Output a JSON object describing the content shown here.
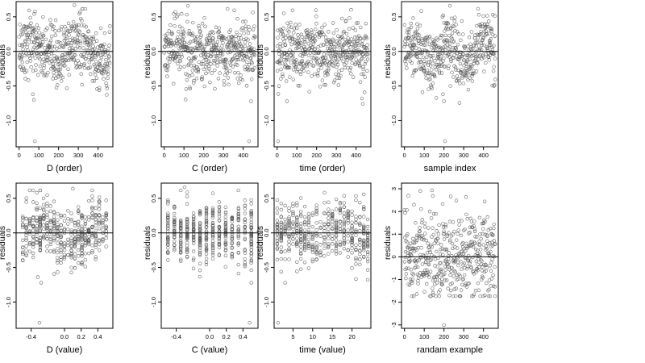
{
  "chart_data": [
    {
      "type": "scatter",
      "xlabel": "D (order)",
      "ylabel": "residuals",
      "xlim": [
        -15,
        475
      ],
      "ylim": [
        -1.38,
        0.72
      ],
      "xticks": [
        0,
        100,
        200,
        300,
        400
      ],
      "xtick_labels": [
        "0",
        "100",
        "200",
        "300",
        "400"
      ],
      "yticks": [
        -1.0,
        -0.5,
        0.0,
        0.5
      ],
      "ytick_labels": [
        "-1.0",
        "-0.5",
        "0.0",
        "0.5"
      ],
      "reference_line_y": 0,
      "point_pattern": {
        "n": 460,
        "x_range": [
          0,
          460
        ],
        "distribution": "index",
        "y_sd": 0.22,
        "wave_amplitude": 0.14,
        "wave_period": 240
      },
      "outliers": [
        {
          "x": 70,
          "y": -0.62
        },
        {
          "x": 75,
          "y": -0.7
        },
        {
          "x": 80,
          "y": -1.3
        },
        {
          "x": 280,
          "y": 0.67
        }
      ]
    },
    {
      "type": "scatter",
      "xlabel": "C (order)",
      "ylabel": "residuals",
      "xlim": [
        -15,
        475
      ],
      "ylim": [
        -1.38,
        0.72
      ],
      "xticks": [
        0,
        100,
        200,
        300,
        400
      ],
      "xtick_labels": [
        "0",
        "100",
        "200",
        "300",
        "400"
      ],
      "yticks": [
        -1.0,
        -0.5,
        0.0,
        0.5
      ],
      "ytick_labels": [
        "-1.0",
        "-0.5",
        "0.0",
        "0.5"
      ],
      "reference_line_y": 0,
      "point_pattern": {
        "n": 460,
        "x_range": [
          0,
          460
        ],
        "distribution": "index",
        "y_sd": 0.22,
        "wave_amplitude": 0.04,
        "wave_period": 200
      },
      "outliers": [
        {
          "x": 120,
          "y": 0.66
        },
        {
          "x": 440,
          "y": -0.72
        },
        {
          "x": 430,
          "y": -1.3
        }
      ]
    },
    {
      "type": "scatter",
      "xlabel": "time (order)",
      "ylabel": "residuals",
      "xlim": [
        -15,
        475
      ],
      "ylim": [
        -1.38,
        0.72
      ],
      "xticks": [
        0,
        100,
        200,
        300,
        400
      ],
      "xtick_labels": [
        "0",
        "100",
        "200",
        "300",
        "400"
      ],
      "yticks": [
        -1.0,
        -0.5,
        0.0,
        0.5
      ],
      "ytick_labels": [
        "-1.0",
        "-0.5",
        "0.0",
        "0.5"
      ],
      "reference_line_y": 0,
      "point_pattern": {
        "n": 460,
        "x_range": [
          0,
          460
        ],
        "distribution": "index",
        "y_sd": 0.22,
        "wave_amplitude": 0.05,
        "wave_period": 160
      },
      "outliers": [
        {
          "x": 50,
          "y": -0.72
        },
        {
          "x": 5,
          "y": -1.3
        },
        {
          "x": 430,
          "y": -0.68
        }
      ]
    },
    {
      "type": "scatter",
      "xlabel": "sample index",
      "ylabel": "residuals",
      "xlim": [
        -15,
        475
      ],
      "ylim": [
        -1.38,
        0.72
      ],
      "xticks": [
        0,
        100,
        200,
        300,
        400
      ],
      "xtick_labels": [
        "0",
        "100",
        "200",
        "300",
        "400"
      ],
      "yticks": [
        -1.0,
        -0.5,
        0.0,
        0.5
      ],
      "ytick_labels": [
        "-1.0",
        "-0.5",
        "0.0",
        "0.5"
      ],
      "reference_line_y": 0,
      "point_pattern": {
        "n": 460,
        "x_range": [
          0,
          460
        ],
        "distribution": "index",
        "y_sd": 0.22,
        "wave_amplitude": 0.15,
        "wave_period": 180
      },
      "outliers": [
        {
          "x": 195,
          "y": -0.62
        },
        {
          "x": 200,
          "y": -0.72
        },
        {
          "x": 205,
          "y": -1.3
        },
        {
          "x": 230,
          "y": 0.66
        }
      ]
    },
    {
      "type": "scatter",
      "xlabel": "D (value)",
      "ylabel": "residuals",
      "xlim": [
        -0.58,
        0.58
      ],
      "ylim": [
        -1.38,
        0.72
      ],
      "xticks": [
        -0.4,
        0.0,
        0.2,
        0.4
      ],
      "xtick_labels": [
        "-0.4",
        "0.0",
        "0.2",
        "0.4"
      ],
      "yticks": [
        -1.0,
        -0.5,
        0.0,
        0.5
      ],
      "ytick_labels": [
        "-1.0",
        "-0.5",
        "0.0",
        "0.5"
      ],
      "reference_line_y": 0,
      "point_pattern": {
        "n": 460,
        "x_range": [
          -0.5,
          0.5
        ],
        "distribution": "levels",
        "levels": 25,
        "y_sd": 0.22,
        "wave_amplitude": 0.1,
        "wave_period": 0.8
      },
      "outliers": [
        {
          "x": -0.32,
          "y": -0.64
        },
        {
          "x": -0.28,
          "y": -0.72
        },
        {
          "x": -0.3,
          "y": -1.3
        },
        {
          "x": 0.1,
          "y": 0.64
        }
      ]
    },
    {
      "type": "scatter",
      "xlabel": "C (value)",
      "ylabel": "residuals",
      "xlim": [
        -0.58,
        0.58
      ],
      "ylim": [
        -1.38,
        0.72
      ],
      "xticks": [
        -0.4,
        0.0,
        0.2,
        0.4
      ],
      "xtick_labels": [
        "-0.4",
        "0.0",
        "0.2",
        "0.4"
      ],
      "yticks": [
        -1.0,
        -0.5,
        0.0,
        0.5
      ],
      "ytick_labels": [
        "-1.0",
        "-0.5",
        "0.0",
        "0.5"
      ],
      "reference_line_y": 0,
      "point_pattern": {
        "n": 460,
        "x_range": [
          -0.5,
          0.5
        ],
        "distribution": "levels",
        "levels": 14,
        "y_sd": 0.22,
        "wave_amplitude": 0.02,
        "wave_period": 0.6
      },
      "outliers": [
        {
          "x": -0.3,
          "y": 0.66
        },
        {
          "x": 0.5,
          "y": -0.72
        },
        {
          "x": 0.48,
          "y": -1.3
        }
      ]
    },
    {
      "type": "scatter",
      "xlabel": "time (value)",
      "ylabel": "residuals",
      "xlim": [
        0.2,
        24.8
      ],
      "ylim": [
        -1.38,
        0.72
      ],
      "xticks": [
        5,
        10,
        15,
        20
      ],
      "xtick_labels": [
        "5",
        "10",
        "15",
        "20"
      ],
      "yticks": [
        -1.0,
        -0.5,
        0.0,
        0.5
      ],
      "ytick_labels": [
        "-1.0",
        "-0.5",
        "0.0",
        "0.5"
      ],
      "reference_line_y": 0,
      "point_pattern": {
        "n": 460,
        "x_range": [
          1,
          24
        ],
        "distribution": "levels",
        "levels": 24,
        "y_sd": 0.22,
        "wave_amplitude": 0.05,
        "wave_period": 12
      },
      "outliers": [
        {
          "x": 3,
          "y": -0.72
        },
        {
          "x": 1.2,
          "y": -1.3
        },
        {
          "x": 24,
          "y": -0.68
        }
      ]
    },
    {
      "type": "scatter",
      "xlabel": "randam example",
      "ylabel": "residuals",
      "xlim": [
        -15,
        475
      ],
      "ylim": [
        -3.15,
        3.25
      ],
      "xticks": [
        0,
        100,
        200,
        300,
        400
      ],
      "xtick_labels": [
        "0",
        "100",
        "200",
        "300",
        "400"
      ],
      "yticks": [
        -3,
        -2,
        -1,
        0,
        1,
        2,
        3
      ],
      "ytick_labels": [
        "-3",
        "-2",
        "-1",
        "0",
        "1",
        "2",
        "3"
      ],
      "reference_line_y": 0,
      "point_pattern": {
        "n": 460,
        "x_range": [
          0,
          460
        ],
        "distribution": "index",
        "y_sd": 1.0,
        "wave_amplitude": 0,
        "wave_period": 100
      },
      "outliers": [
        {
          "x": 80,
          "y": 2.9
        },
        {
          "x": 200,
          "y": -3.0
        }
      ]
    }
  ]
}
